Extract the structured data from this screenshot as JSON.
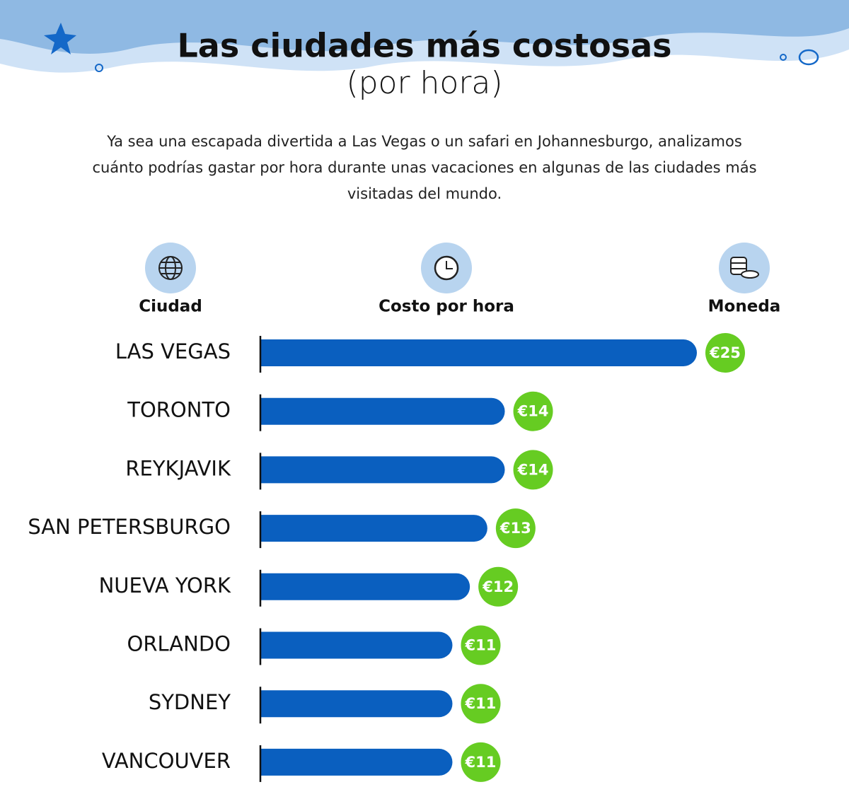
{
  "chart_data": {
    "type": "bar",
    "orientation": "horizontal",
    "title": "Las ciudades más costosas",
    "subtitle": "(por hora)",
    "description": "Ya sea una escapada divertida a Las Vegas o un safari en Johannesburgo, analizamos cuánto podrías gastar por hora durante unas vacaciones en algunas de las ciudades más visitadas del mundo.",
    "column_headers": [
      "Ciudad",
      "Costo por hora",
      "Moneda"
    ],
    "categories": [
      "LAS VEGAS",
      "TORONTO",
      "REYKJAVIK",
      "SAN PETERSBURGO",
      "NUEVA YORK",
      "ORLANDO",
      "SYDNEY",
      "VANCOUVER"
    ],
    "values": [
      25,
      14,
      14,
      13,
      12,
      11,
      11,
      11
    ],
    "value_labels": [
      "€25",
      "€14",
      "€14",
      "€13",
      "€12",
      "€11",
      "€11",
      "€11"
    ],
    "color": "#0a5fbf",
    "value_label_color": "#66cc22"
  }
}
